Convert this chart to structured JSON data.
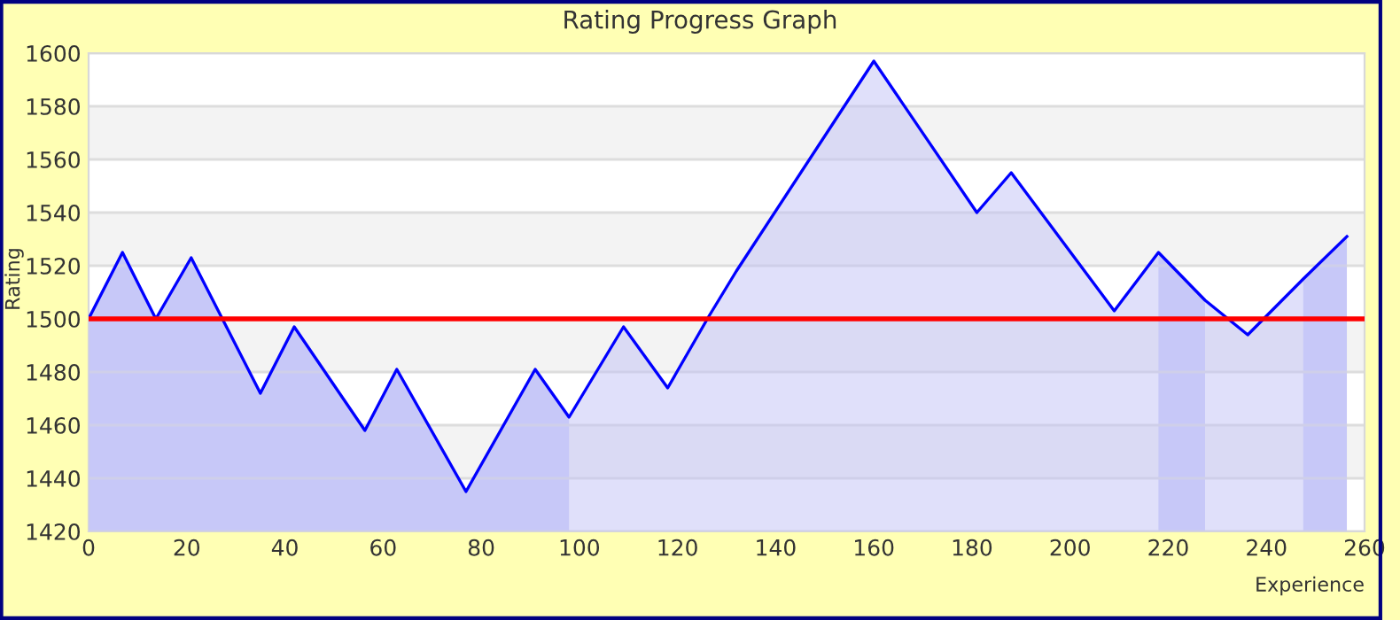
{
  "chart_data": {
    "type": "area",
    "title": "Rating Progress Graph",
    "xlabel": "Experience",
    "ylabel": "Rating",
    "x": [
      0,
      6.9,
      13.7,
      20.9,
      35,
      41.9,
      56.3,
      62.8,
      76.9,
      91,
      97.9,
      109,
      118,
      126.4,
      132,
      160,
      181,
      188,
      209,
      218,
      227.5,
      236.2,
      247.5,
      256.4
    ],
    "series": [
      {
        "color": "#0000ff",
        "values": [
          1500,
          1525,
          1500,
          1523,
          1472,
          1497,
          1458,
          1481,
          1435,
          1481,
          1463,
          1497,
          1474,
          1501,
          1518,
          1597,
          1540,
          1555,
          1503,
          1525,
          1507,
          1494,
          1515,
          1531
        ]
      }
    ],
    "xlim": [
      0,
      260
    ],
    "ylim": [
      1420,
      1600
    ],
    "xticks": [
      0,
      20,
      40,
      60,
      80,
      100,
      120,
      140,
      160,
      180,
      200,
      220,
      240,
      260
    ],
    "yticks": [
      1420,
      1440,
      1460,
      1480,
      1500,
      1520,
      1540,
      1560,
      1580,
      1600
    ],
    "ref_lines": [
      {
        "axis": "y",
        "value": 1500,
        "color": "#ff0000"
      }
    ],
    "bands": [
      {
        "axis": "x",
        "from": 0,
        "to": 97.9,
        "color": "#cccefa"
      },
      {
        "axis": "x",
        "from": 218,
        "to": 227.5,
        "color": "#cccefa"
      },
      {
        "axis": "x",
        "from": 247.5,
        "to": 256.4,
        "color": "#cccefa"
      }
    ],
    "grid": "y",
    "legend": false
  }
}
